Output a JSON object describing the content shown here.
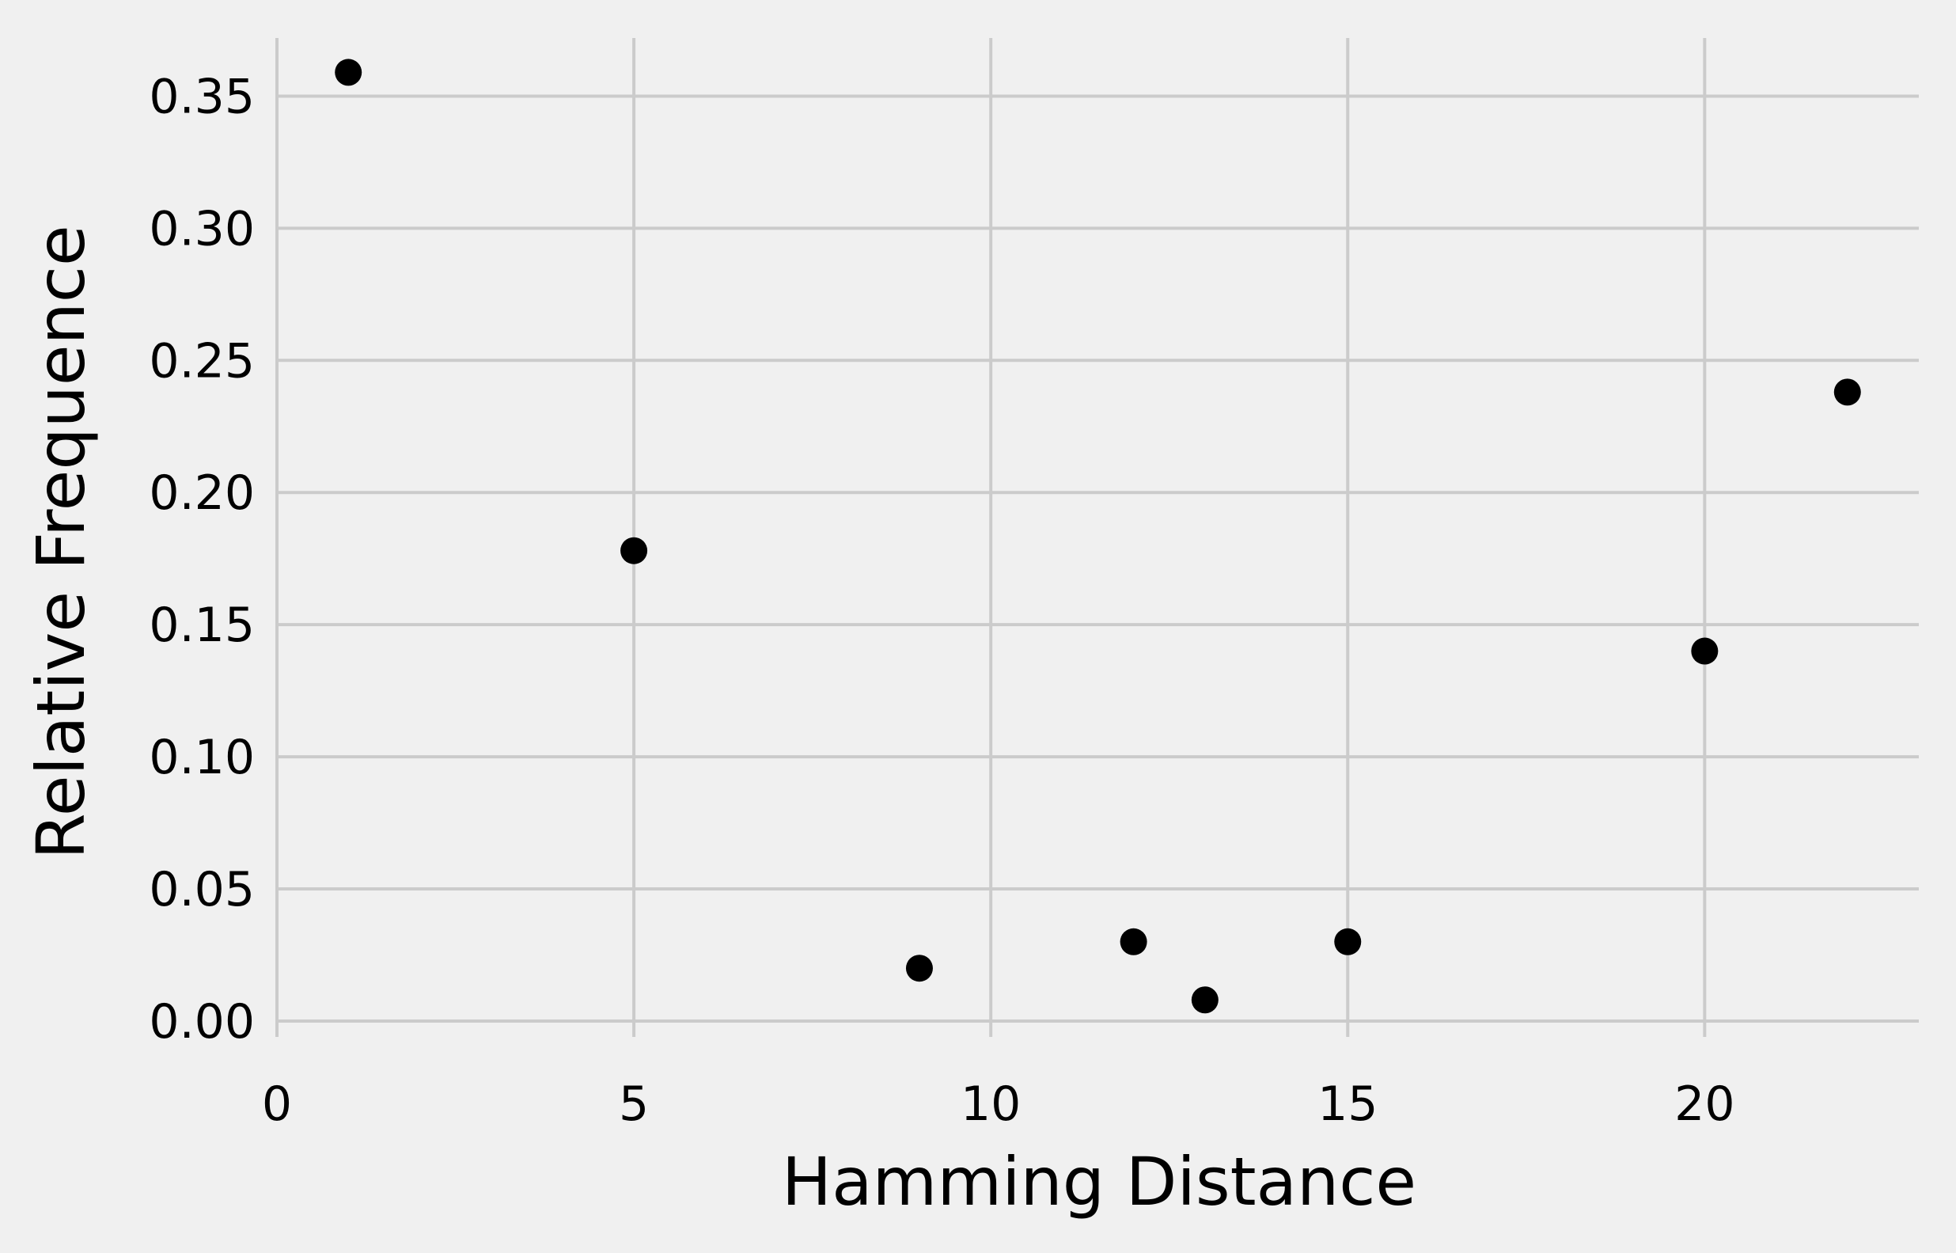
{
  "chart_data": {
    "type": "scatter",
    "title": "",
    "xlabel": "Hamming Distance",
    "ylabel": "Relative Frequence",
    "xlim": [
      0,
      23
    ],
    "ylim": [
      -0.006,
      0.372
    ],
    "xticks": [
      0,
      5,
      10,
      15,
      20
    ],
    "xtick_labels": [
      "0",
      "5",
      "10",
      "15",
      "20"
    ],
    "yticks": [
      0.0,
      0.05,
      0.1,
      0.15,
      0.2,
      0.25,
      0.3,
      0.35
    ],
    "ytick_labels": [
      "0.00",
      "0.05",
      "0.10",
      "0.15",
      "0.20",
      "0.25",
      "0.30",
      "0.35"
    ],
    "grid": true,
    "background": "#f0f0f0",
    "marker_color": "#000000",
    "points": [
      {
        "x": 1,
        "y": 0.359
      },
      {
        "x": 5,
        "y": 0.178
      },
      {
        "x": 9,
        "y": 0.02
      },
      {
        "x": 12,
        "y": 0.03
      },
      {
        "x": 13,
        "y": 0.008
      },
      {
        "x": 15,
        "y": 0.03
      },
      {
        "x": 20,
        "y": 0.14
      },
      {
        "x": 22,
        "y": 0.238
      }
    ]
  }
}
